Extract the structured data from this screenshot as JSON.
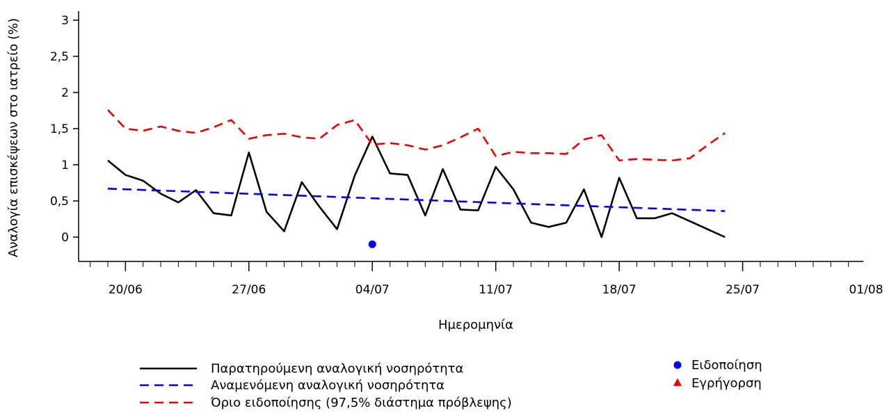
{
  "chart_data": {
    "type": "line",
    "xlabel": "Ημερομηνία",
    "ylabel": "Αναλογία επισκέψεων στο ιατρείο (%)",
    "ylim": [
      -0.35,
      3.1
    ],
    "y_ticks": [
      0,
      0.5,
      1,
      1.5,
      2,
      2.5,
      3
    ],
    "y_tick_labels": [
      "0",
      "0,5",
      "1",
      "1,5",
      "2",
      "2,5",
      "3"
    ],
    "x_tick_labels": [
      "20/06",
      "27/06",
      "04/07",
      "11/07",
      "18/07",
      "25/07",
      "01/08"
    ],
    "x_axis_start": "2021-06-18",
    "x_axis_end": "2021-08-02",
    "series": [
      {
        "name": "Παρατηρούμενη αναλογική νοσηρότητα",
        "color": "#000000",
        "style": "solid",
        "x": [
          "2021-06-19",
          "2021-06-20",
          "2021-06-21",
          "2021-06-22",
          "2021-06-23",
          "2021-06-24",
          "2021-06-25",
          "2021-06-26",
          "2021-06-27",
          "2021-06-28",
          "2021-06-29",
          "2021-06-30",
          "2021-07-01",
          "2021-07-02",
          "2021-07-03",
          "2021-07-04",
          "2021-07-05",
          "2021-07-06",
          "2021-07-07",
          "2021-07-08",
          "2021-07-09",
          "2021-07-10",
          "2021-07-11",
          "2021-07-12",
          "2021-07-13",
          "2021-07-14",
          "2021-07-15",
          "2021-07-16",
          "2021-07-17",
          "2021-07-18",
          "2021-07-19",
          "2021-07-20",
          "2021-07-21",
          "2021-07-22",
          "2021-07-23",
          "2021-07-24"
        ],
        "y": [
          1.06,
          0.86,
          0.78,
          0.6,
          0.48,
          0.65,
          0.33,
          0.3,
          1.17,
          0.35,
          0.08,
          0.76,
          0.42,
          0.11,
          0.85,
          1.39,
          0.88,
          0.86,
          0.3,
          0.94,
          0.38,
          0.37,
          0.97,
          0.66,
          0.2,
          0.14,
          0.2,
          0.66,
          0.0,
          0.82,
          0.26,
          0.26,
          0.33,
          0.22,
          0.11,
          0.0
        ]
      },
      {
        "name": "Αναμενόμενη αναλογική νοσηρότητα",
        "color": "#0000ee",
        "style": "dashed",
        "x": [
          "2021-06-19",
          "2021-07-24"
        ],
        "y": [
          0.67,
          0.36
        ]
      },
      {
        "name": "Όριο ειδοποίησης (97,5% διάστημα πρόβλεψης)",
        "color": "#ee0000",
        "style": "dashed",
        "x": [
          "2021-06-19",
          "2021-06-20",
          "2021-06-21",
          "2021-06-22",
          "2021-06-23",
          "2021-06-24",
          "2021-06-25",
          "2021-06-26",
          "2021-06-27",
          "2021-06-28",
          "2021-06-29",
          "2021-06-30",
          "2021-07-01",
          "2021-07-02",
          "2021-07-03",
          "2021-07-04",
          "2021-07-05",
          "2021-07-06",
          "2021-07-07",
          "2021-07-08",
          "2021-07-09",
          "2021-07-10",
          "2021-07-11",
          "2021-07-12",
          "2021-07-13",
          "2021-07-14",
          "2021-07-15",
          "2021-07-16",
          "2021-07-17",
          "2021-07-18",
          "2021-07-19",
          "2021-07-20",
          "2021-07-21",
          "2021-07-22",
          "2021-07-23",
          "2021-07-24"
        ],
        "y": [
          1.76,
          1.5,
          1.47,
          1.53,
          1.47,
          1.44,
          1.52,
          1.62,
          1.36,
          1.41,
          1.43,
          1.38,
          1.36,
          1.55,
          1.62,
          1.28,
          1.3,
          1.27,
          1.21,
          1.27,
          1.38,
          1.5,
          1.12,
          1.18,
          1.16,
          1.16,
          1.15,
          1.35,
          1.41,
          1.06,
          1.08,
          1.07,
          1.06,
          1.09,
          1.27,
          1.44
        ]
      }
    ],
    "alert_points": {
      "name": "Ειδοποίηση",
      "color": "#0000ee",
      "marker": "circle",
      "points": [
        {
          "x": "2021-07-04",
          "y": -0.1
        }
      ]
    },
    "alarm_points": {
      "name": "Εγρήγορση",
      "color": "#ee0000",
      "marker": "triangle",
      "points": []
    },
    "grid": false,
    "legend": "bottom"
  }
}
